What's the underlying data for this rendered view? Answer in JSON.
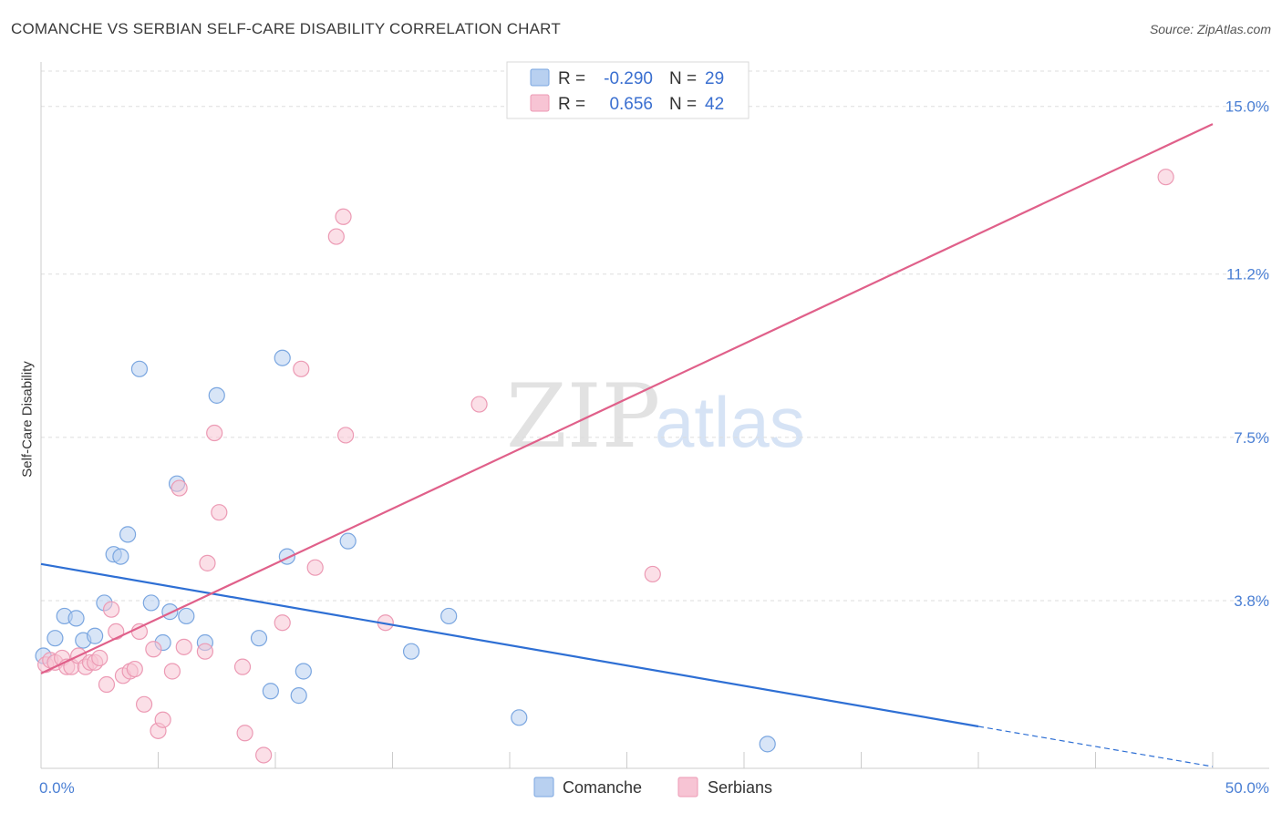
{
  "title": "COMANCHE VS SERBIAN SELF-CARE DISABILITY CORRELATION CHART",
  "source": "Source: ZipAtlas.com",
  "watermark": {
    "part1": "ZIP",
    "part2": "atlas"
  },
  "colors": {
    "comanche_fill": "#b8d0f0",
    "comanche_stroke": "#7aa6e0",
    "comanche_line": "#2e6fd4",
    "serbian_fill": "#f7c4d4",
    "serbian_stroke": "#ec9ab4",
    "serbian_line": "#e0608a",
    "grid": "#dddddd",
    "tick_text": "#4a7fd4"
  },
  "legend": {
    "rows": [
      {
        "r_label": "R =",
        "r_value": "-0.290",
        "n_label": "N =",
        "n_value": "29"
      },
      {
        "r_label": "R =",
        "r_value": "0.656",
        "n_label": "N =",
        "n_value": "42"
      }
    ]
  },
  "chart_data": {
    "type": "scatter",
    "title": "COMANCHE VS SERBIAN SELF-CARE DISABILITY CORRELATION CHART",
    "xlabel": "",
    "ylabel": "Self-Care Disability",
    "xlim": [
      0,
      50
    ],
    "ylim": [
      0,
      15.8
    ],
    "x_tick_labels": [
      "0.0%",
      "50.0%"
    ],
    "y_ticks": [
      3.8,
      7.5,
      11.2,
      15.0
    ],
    "y_tick_labels": [
      "3.8%",
      "7.5%",
      "11.2%",
      "15.0%"
    ],
    "grid": true,
    "legend_position": "bottom",
    "series": [
      {
        "name": "Comanche",
        "points": [
          [
            0.1,
            2.55
          ],
          [
            0.6,
            2.95
          ],
          [
            1.0,
            3.45
          ],
          [
            1.5,
            3.4
          ],
          [
            1.8,
            2.9
          ],
          [
            2.3,
            3.0
          ],
          [
            2.7,
            3.75
          ],
          [
            3.1,
            4.85
          ],
          [
            3.4,
            4.8
          ],
          [
            3.7,
            5.3
          ],
          [
            4.2,
            9.05
          ],
          [
            4.7,
            3.75
          ],
          [
            5.2,
            2.85
          ],
          [
            5.5,
            3.55
          ],
          [
            5.8,
            6.45
          ],
          [
            6.2,
            3.45
          ],
          [
            7.0,
            2.85
          ],
          [
            7.5,
            8.45
          ],
          [
            9.3,
            2.95
          ],
          [
            9.8,
            1.75
          ],
          [
            10.3,
            9.3
          ],
          [
            10.5,
            4.8
          ],
          [
            11.0,
            1.65
          ],
          [
            11.2,
            2.2
          ],
          [
            13.1,
            5.15
          ],
          [
            15.8,
            2.65
          ],
          [
            17.4,
            3.45
          ],
          [
            20.4,
            1.15
          ],
          [
            31.0,
            0.55
          ]
        ],
        "trend": {
          "x0": 0,
          "y0": 4.63,
          "x1": 40,
          "y1": 0.95,
          "dash_to_x": 50,
          "dash_to_y": 0.04
        }
      },
      {
        "name": "Serbians",
        "points": [
          [
            0.2,
            2.35
          ],
          [
            0.4,
            2.45
          ],
          [
            0.6,
            2.4
          ],
          [
            0.9,
            2.5
          ],
          [
            1.1,
            2.3
          ],
          [
            1.3,
            2.3
          ],
          [
            1.6,
            2.55
          ],
          [
            1.9,
            2.3
          ],
          [
            2.1,
            2.4
          ],
          [
            2.3,
            2.4
          ],
          [
            2.5,
            2.5
          ],
          [
            2.8,
            1.9
          ],
          [
            3.0,
            3.6
          ],
          [
            3.2,
            3.1
          ],
          [
            3.5,
            2.1
          ],
          [
            3.8,
            2.2
          ],
          [
            4.0,
            2.25
          ],
          [
            4.2,
            3.1
          ],
          [
            4.4,
            1.45
          ],
          [
            4.8,
            2.7
          ],
          [
            5.0,
            0.85
          ],
          [
            5.2,
            1.1
          ],
          [
            5.6,
            2.2
          ],
          [
            5.9,
            6.35
          ],
          [
            6.1,
            2.75
          ],
          [
            7.0,
            2.65
          ],
          [
            7.1,
            4.65
          ],
          [
            7.4,
            7.6
          ],
          [
            7.6,
            5.8
          ],
          [
            8.6,
            2.3
          ],
          [
            8.7,
            0.8
          ],
          [
            9.5,
            0.3
          ],
          [
            10.3,
            3.3
          ],
          [
            11.1,
            9.05
          ],
          [
            11.7,
            4.55
          ],
          [
            12.6,
            12.05
          ],
          [
            12.9,
            12.5
          ],
          [
            13.0,
            7.55
          ],
          [
            14.7,
            3.3
          ],
          [
            18.7,
            8.25
          ],
          [
            26.1,
            4.4
          ],
          [
            48.0,
            13.4
          ]
        ],
        "trend": {
          "x0": 0,
          "y0": 2.15,
          "x1": 50,
          "y1": 14.6
        }
      }
    ]
  }
}
